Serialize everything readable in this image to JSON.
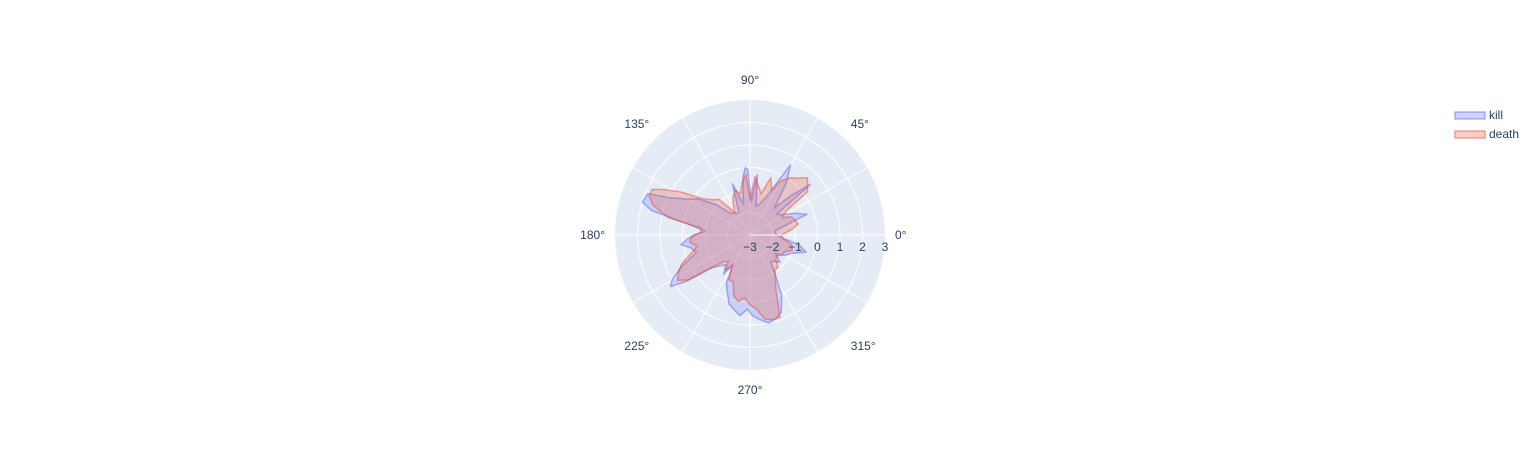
{
  "chart_data": {
    "type": "polar-area",
    "title": "",
    "radial_axis": {
      "range": [
        -3,
        3
      ],
      "ticks": [
        -3,
        -2,
        -1,
        0,
        1,
        2,
        3
      ],
      "tick_labels": [
        "−3",
        "−2",
        "−1",
        "0",
        "1",
        "2",
        "3"
      ]
    },
    "angular_axis": {
      "ticks": [
        0,
        45,
        90,
        135,
        180,
        225,
        270,
        315
      ],
      "tick_labels": [
        "0°",
        "45°",
        "90°",
        "135°",
        "180°",
        "225°",
        "270°",
        "315°"
      ]
    },
    "grid": true,
    "legend": {
      "position": "top-right"
    },
    "series": [
      {
        "name": "kill",
        "color": "#636efa",
        "fill_opacity": 0.22,
        "points": [
          [
            0,
            -1.8
          ],
          [
            8,
            -1.9
          ],
          [
            14,
            -1.5
          ],
          [
            20,
            -0.3
          ],
          [
            26,
            -0.8
          ],
          [
            32,
            -1.3
          ],
          [
            38,
            -1.5
          ],
          [
            40,
            0.5
          ],
          [
            44,
            -0.5
          ],
          [
            48,
            -1.4
          ],
          [
            55,
            -0.2
          ],
          [
            60,
            0.6
          ],
          [
            67,
            -1.2
          ],
          [
            72,
            -1.5
          ],
          [
            78,
            -1.7
          ],
          [
            83,
            -0.3
          ],
          [
            88,
            -1.5
          ],
          [
            92,
            -0.1
          ],
          [
            94,
            0.0
          ],
          [
            97,
            -0.4
          ],
          [
            102,
            -1.6
          ],
          [
            109,
            -0.6
          ],
          [
            115,
            -1.8
          ],
          [
            120,
            -1.9
          ],
          [
            126,
            -1.8
          ],
          [
            132,
            -1.7
          ],
          [
            138,
            -1.0
          ],
          [
            145,
            -0.2
          ],
          [
            150,
            0.2
          ],
          [
            155,
            0.9
          ],
          [
            158,
            1.9
          ],
          [
            163,
            2.0
          ],
          [
            166,
            1.5
          ],
          [
            170,
            -0.2
          ],
          [
            175,
            -1.0
          ],
          [
            180,
            -0.5
          ],
          [
            184,
            -0.2
          ],
          [
            188,
            0.1
          ],
          [
            192,
            -0.3
          ],
          [
            198,
            -0.5
          ],
          [
            205,
            0.4
          ],
          [
            210,
            1.0
          ],
          [
            213,
            1.2
          ],
          [
            216,
            0.5
          ],
          [
            221,
            -0.8
          ],
          [
            226,
            -1.1
          ],
          [
            231,
            -1.3
          ],
          [
            236,
            -0.9
          ],
          [
            240,
            -1.5
          ],
          [
            244,
            -0.6
          ],
          [
            248,
            -0.3
          ],
          [
            253,
            0.2
          ],
          [
            258,
            0.4
          ],
          [
            263,
            0.6
          ],
          [
            268,
            0.3
          ],
          [
            272,
            0.6
          ],
          [
            277,
            0.8
          ],
          [
            282,
            1.0
          ],
          [
            287,
            0.9
          ],
          [
            292,
            0.7
          ],
          [
            298,
            0.0
          ],
          [
            303,
            -1.0
          ],
          [
            308,
            -1.5
          ],
          [
            313,
            -1.4
          ],
          [
            318,
            -1.2
          ],
          [
            324,
            -1.6
          ],
          [
            330,
            -1.2
          ],
          [
            336,
            -1.0
          ],
          [
            343,
            -0.4
          ],
          [
            349,
            -0.8
          ],
          [
            354,
            -1.5
          ]
        ]
      },
      {
        "name": "death",
        "color": "#ef553b",
        "fill_opacity": 0.26,
        "points": [
          [
            0,
            -1.6
          ],
          [
            8,
            -1.1
          ],
          [
            13,
            -0.8
          ],
          [
            18,
            -0.9
          ],
          [
            24,
            -1.0
          ],
          [
            29,
            -1.4
          ],
          [
            34,
            -1.0
          ],
          [
            37,
            0.2
          ],
          [
            41,
            0.4
          ],
          [
            45,
            0.6
          ],
          [
            50,
            0.3
          ],
          [
            55,
            0.1
          ],
          [
            60,
            -0.2
          ],
          [
            64,
            -0.8
          ],
          [
            70,
            -0.3
          ],
          [
            75,
            -1.1
          ],
          [
            80,
            -0.8
          ],
          [
            85,
            -0.4
          ],
          [
            90,
            -1.4
          ],
          [
            94,
            -0.3
          ],
          [
            98,
            -0.6
          ],
          [
            103,
            -1.1
          ],
          [
            108,
            -0.9
          ],
          [
            113,
            -1.1
          ],
          [
            118,
            -1.4
          ],
          [
            124,
            -1.8
          ],
          [
            131,
            -0.9
          ],
          [
            137,
            -0.7
          ],
          [
            143,
            -0.3
          ],
          [
            148,
            0.6
          ],
          [
            152,
            1.3
          ],
          [
            155,
            1.8
          ],
          [
            159,
            1.8
          ],
          [
            163,
            1.5
          ],
          [
            168,
            0.7
          ],
          [
            172,
            -0.8
          ],
          [
            177,
            -0.8
          ],
          [
            182,
            -0.4
          ],
          [
            187,
            -0.3
          ],
          [
            192,
            -0.6
          ],
          [
            198,
            -0.2
          ],
          [
            203,
            0.3
          ],
          [
            208,
            0.6
          ],
          [
            212,
            0.8
          ],
          [
            216,
            0.4
          ],
          [
            221,
            -0.9
          ],
          [
            225,
            -1.3
          ],
          [
            230,
            -1.5
          ],
          [
            235,
            -1.1
          ],
          [
            240,
            -1.4
          ],
          [
            245,
            -0.8
          ],
          [
            250,
            -0.8
          ],
          [
            255,
            -0.2
          ],
          [
            260,
            0.0
          ],
          [
            265,
            -0.2
          ],
          [
            270,
            0.1
          ],
          [
            275,
            0.3
          ],
          [
            280,
            0.8
          ],
          [
            285,
            0.9
          ],
          [
            290,
            0.9
          ],
          [
            296,
            -0.4
          ],
          [
            301,
            -0.8
          ],
          [
            306,
            -1.1
          ],
          [
            311,
            -1.1
          ],
          [
            316,
            -1.4
          ],
          [
            322,
            -1.5
          ],
          [
            328,
            -1.3
          ],
          [
            334,
            -1.3
          ],
          [
            340,
            -1.0
          ],
          [
            347,
            -1.1
          ],
          [
            353,
            -1.5
          ]
        ]
      }
    ]
  }
}
